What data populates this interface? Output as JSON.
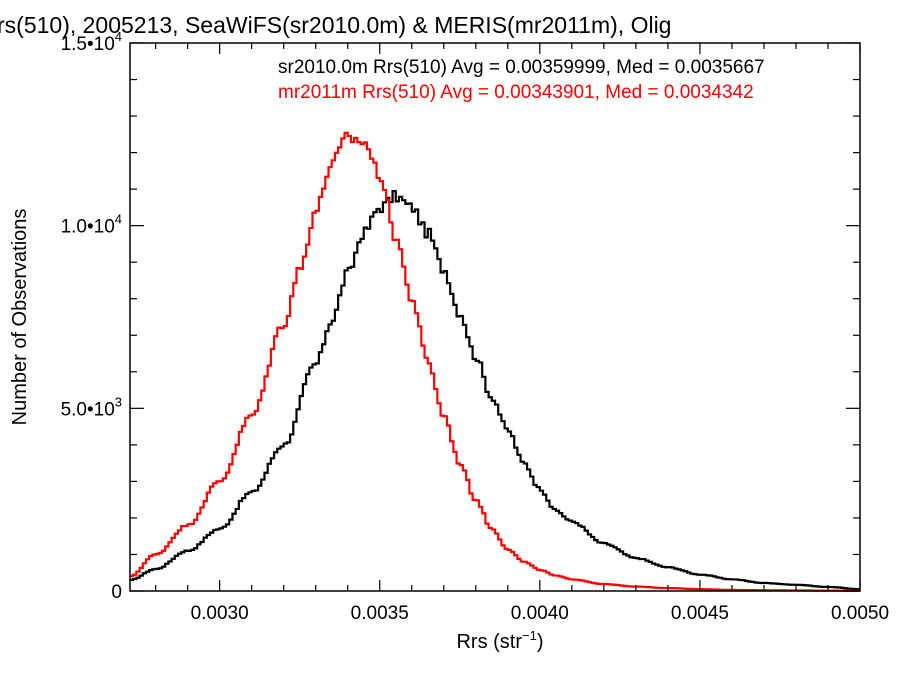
{
  "chart_data": {
    "type": "line",
    "title": "rs(510), 2005213, SeaWiFS(sr2010.0m) & MERIS(mr2011m), Olig",
    "xlabel_main": "Rrs (str",
    "xlabel_sup": "−1",
    "xlabel_end": ")",
    "ylabel": "Number of Observations",
    "xlim": [
      0.00272,
      0.005
    ],
    "ylim": [
      0,
      15000
    ],
    "x_ticks": [
      {
        "value": 0.003,
        "label": "0.0030"
      },
      {
        "value": 0.0035,
        "label": "0.0035"
      },
      {
        "value": 0.004,
        "label": "0.0040"
      },
      {
        "value": 0.0045,
        "label": "0.0045"
      },
      {
        "value": 0.005,
        "label": "0.0050"
      }
    ],
    "y_ticks": [
      {
        "value": 0,
        "mant": "0",
        "exp": ""
      },
      {
        "value": 5000,
        "mant": "5.0•10",
        "exp": "3"
      },
      {
        "value": 10000,
        "mant": "1.0•10",
        "exp": "4"
      },
      {
        "value": 15000,
        "mant": "1.5•10",
        "exp": "4"
      }
    ],
    "grid": false,
    "legend_position": "top-right",
    "series": [
      {
        "name": "sr2010.0m Rrs(510) Avg = 0.00359999, Med = 0.0035667",
        "color": "#000000",
        "x": [
          0.00272,
          0.0028,
          0.0029,
          0.003,
          0.0031,
          0.0032,
          0.0033,
          0.00335,
          0.0034,
          0.00345,
          0.0035,
          0.00355,
          0.0036,
          0.00365,
          0.0037,
          0.00375,
          0.0038,
          0.00385,
          0.0039,
          0.00395,
          0.004,
          0.00405,
          0.0041,
          0.0042,
          0.0043,
          0.0044,
          0.0045,
          0.0046,
          0.0047,
          0.0048,
          0.0049,
          0.005
        ],
        "y": [
          300,
          600,
          1100,
          1700,
          2700,
          4000,
          6200,
          7400,
          8700,
          9800,
          10500,
          10800,
          10500,
          9800,
          8800,
          7600,
          6400,
          5300,
          4400,
          3500,
          2800,
          2200,
          1900,
          1300,
          900,
          650,
          450,
          320,
          220,
          170,
          110,
          50
        ]
      },
      {
        "name": "mr2011m Rrs(510) Avg = 0.00343901, Med = 0.0034342",
        "color": "#ff0000",
        "x": [
          0.00272,
          0.0028,
          0.0029,
          0.003,
          0.0031,
          0.0032,
          0.00325,
          0.0033,
          0.00335,
          0.0034,
          0.00345,
          0.0035,
          0.00355,
          0.0036,
          0.00365,
          0.0037,
          0.00375,
          0.0038,
          0.00385,
          0.0039,
          0.00395,
          0.004,
          0.00405,
          0.0041,
          0.0042,
          0.0043,
          0.0044,
          0.0045,
          0.0046,
          0.0047,
          0.0048,
          0.0049,
          0.005
        ],
        "y": [
          400,
          1000,
          1800,
          3000,
          4800,
          7300,
          8800,
          10400,
          11700,
          12400,
          12300,
          11400,
          9700,
          8000,
          6300,
          4800,
          3500,
          2500,
          1700,
          1150,
          800,
          580,
          420,
          320,
          190,
          120,
          80,
          50,
          30,
          20,
          15,
          10,
          5
        ]
      }
    ]
  }
}
